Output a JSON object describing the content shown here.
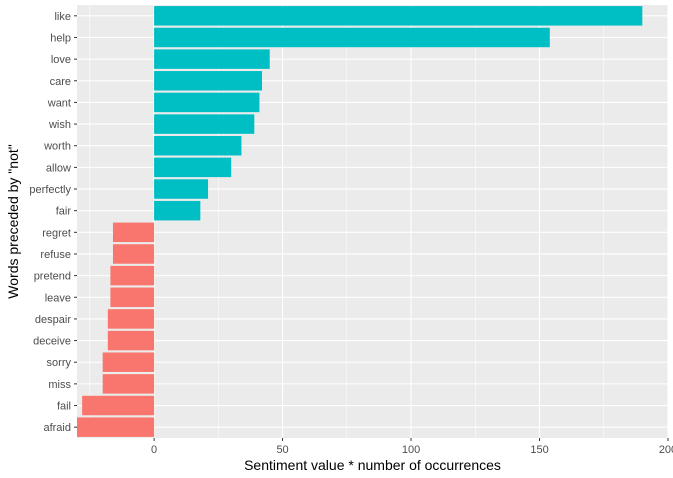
{
  "chart_data": {
    "type": "bar",
    "orientation": "horizontal",
    "xlabel": "Sentiment value * number of occurrences",
    "ylabel": "Words preceded by \"not\"",
    "xlim": [
      -30,
      200
    ],
    "x_ticks": [
      0,
      50,
      100,
      150,
      200
    ],
    "grid": true,
    "legend": "none",
    "colors": {
      "positive": "#00BFC4",
      "negative": "#F8766D",
      "panel": "#EBEBEB",
      "grid": "#FFFFFF",
      "tick_text": "#4D4D4D",
      "axis_title": "#000000"
    },
    "categories": [
      "like",
      "help",
      "love",
      "care",
      "want",
      "wish",
      "worth",
      "allow",
      "perfectly",
      "fair",
      "regret",
      "refuse",
      "pretend",
      "leave",
      "despair",
      "deceive",
      "sorry",
      "miss",
      "fail",
      "afraid"
    ],
    "values": [
      190,
      154,
      45,
      42,
      41,
      39,
      34,
      30,
      21,
      18,
      -16,
      -16,
      -17,
      -17,
      -18,
      -18,
      -20,
      -20,
      -28,
      -30
    ]
  }
}
